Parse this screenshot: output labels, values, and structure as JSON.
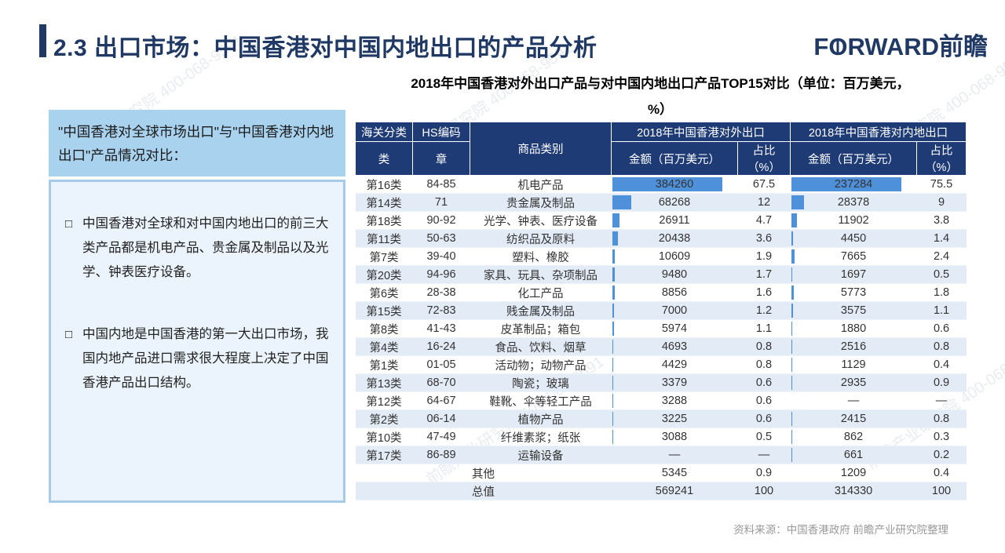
{
  "slide": {
    "title": "2.3 出口市场：中国香港对中国内地出口的产品分析",
    "logo_f": "F",
    "logo_o": "O",
    "logo_rward": "RWARD",
    "logo_cn": "前瞻",
    "source": "资料来源：中国香港政府  前瞻产业研究院整理",
    "watermark": "前瞻产业研究院 400-068-9591"
  },
  "panel": {
    "header": "\"中国香港对全球市场出口\"与\"中国香港对内地出口\"产品情况对比：",
    "bullet_marker": "□",
    "bullets": [
      "中国香港对全球和对中国内地出口的前三大类产品都是机电产品、贵金属及制品以及光学、钟表医疗设备。",
      "中国内地是中国香港的第一大出口市场，我国内地产品进口需求很大程度上决定了中国香港产品出口结构。"
    ]
  },
  "table": {
    "title_line1": "2018年中国香港对外出口产品与对中国内地出口产品TOP15对比（单位：百万美元，",
    "title_line2": "%）",
    "header": {
      "col1_top": "海关分类",
      "col1_bottom": "类",
      "col2_top": "HS编码",
      "col2_bottom": "章",
      "col3": "商品类别",
      "group1": "2018年中国香港对外出口",
      "group2": "2018年中国香港对内地出口",
      "amount_label": "金额（百万美元）",
      "share_label": "占比（%）"
    },
    "rows": [
      {
        "c": "第16类",
        "hs": "84-85",
        "p": "机电产品",
        "a1": "384260",
        "s1": "67.5",
        "a2": "237284",
        "s2": "75.5"
      },
      {
        "c": "第14类",
        "hs": "71",
        "p": "贵金属及制品",
        "a1": "68268",
        "s1": "12",
        "a2": "28378",
        "s2": "9"
      },
      {
        "c": "第18类",
        "hs": "90-92",
        "p": "光学、钟表、医疗设备",
        "a1": "26911",
        "s1": "4.7",
        "a2": "11902",
        "s2": "3.8"
      },
      {
        "c": "第11类",
        "hs": "50-63",
        "p": "纺织品及原料",
        "a1": "20438",
        "s1": "3.6",
        "a2": "4450",
        "s2": "1.4"
      },
      {
        "c": "第7类",
        "hs": "39-40",
        "p": "塑料、橡胶",
        "a1": "10609",
        "s1": "1.9",
        "a2": "7665",
        "s2": "2.4"
      },
      {
        "c": "第20类",
        "hs": "94-96",
        "p": "家具、玩具、杂项制品",
        "a1": "9480",
        "s1": "1.7",
        "a2": "1697",
        "s2": "0.5"
      },
      {
        "c": "第6类",
        "hs": "28-38",
        "p": "化工产品",
        "a1": "8856",
        "s1": "1.6",
        "a2": "5773",
        "s2": "1.8"
      },
      {
        "c": "第15类",
        "hs": "72-83",
        "p": "贱金属及制品",
        "a1": "7000",
        "s1": "1.2",
        "a2": "3575",
        "s2": "1.1"
      },
      {
        "c": "第8类",
        "hs": "41-43",
        "p": "皮革制品；箱包",
        "a1": "5974",
        "s1": "1.1",
        "a2": "1880",
        "s2": "0.6"
      },
      {
        "c": "第4类",
        "hs": "16-24",
        "p": "食品、饮料、烟草",
        "a1": "4693",
        "s1": "0.8",
        "a2": "2516",
        "s2": "0.8"
      },
      {
        "c": "第1类",
        "hs": "01-05",
        "p": "活动物；动物产品",
        "a1": "4429",
        "s1": "0.8",
        "a2": "1129",
        "s2": "0.4"
      },
      {
        "c": "第13类",
        "hs": "68-70",
        "p": "陶瓷；玻璃",
        "a1": "3379",
        "s1": "0.6",
        "a2": "2935",
        "s2": "0.9"
      },
      {
        "c": "第12类",
        "hs": "64-67",
        "p": "鞋靴、伞等轻工产品",
        "a1": "3288",
        "s1": "0.6",
        "a2": "—",
        "s2": "—"
      },
      {
        "c": "第2类",
        "hs": "06-14",
        "p": "植物产品",
        "a1": "3225",
        "s1": "0.6",
        "a2": "2415",
        "s2": "0.8"
      },
      {
        "c": "第10类",
        "hs": "47-49",
        "p": "纤维素浆；纸张",
        "a1": "3088",
        "s1": "0.5",
        "a2": "862",
        "s2": "0.3"
      },
      {
        "c": "第17类",
        "hs": "86-89",
        "p": "运输设备",
        "a1": "—",
        "s1": "—",
        "a2": "661",
        "s2": "0.2"
      }
    ],
    "other": {
      "label": "其他",
      "a1": "5345",
      "s1": "0.9",
      "a2": "1209",
      "s2": "0.4"
    },
    "total": {
      "label": "总值",
      "a1": "569241",
      "s1": "100",
      "a2": "314330",
      "s2": "100"
    },
    "colors": {
      "navy": "#1F3864",
      "header_bg": "#1E3B76",
      "bar": "#4E90D9",
      "stripe": "#E3EBF6",
      "panel_header_bg": "#A9D2EE",
      "panel_body_bg": "#EBF3FC",
      "panel_border": "#A5CBE9"
    }
  }
}
